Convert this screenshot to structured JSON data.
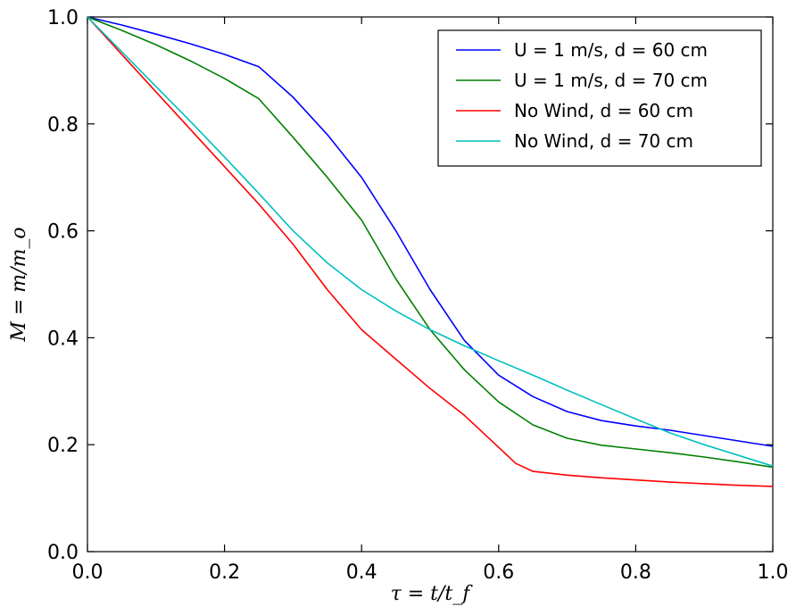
{
  "chart_data": {
    "type": "line",
    "xlabel": "τ = t/t_f",
    "ylabel": "M = m/m_o",
    "xlim": [
      0.0,
      1.0
    ],
    "ylim": [
      0.0,
      1.0
    ],
    "xticks": [
      "0.0",
      "0.2",
      "0.4",
      "0.6",
      "0.8",
      "1.0"
    ],
    "yticks": [
      "0.0",
      "0.2",
      "0.4",
      "0.6",
      "0.8",
      "1.0"
    ],
    "grid": false,
    "legend_position": "top-right",
    "series": [
      {
        "name": "U = 1 m/s, d = 60 cm",
        "color": "#0000ff",
        "x": [
          0.0,
          0.05,
          0.1,
          0.15,
          0.2,
          0.25,
          0.3,
          0.35,
          0.4,
          0.45,
          0.5,
          0.55,
          0.6,
          0.65,
          0.7,
          0.75,
          0.8,
          0.85,
          0.9,
          0.95,
          1.0
        ],
        "y": [
          1.0,
          0.985,
          0.968,
          0.95,
          0.93,
          0.907,
          0.85,
          0.78,
          0.7,
          0.6,
          0.49,
          0.395,
          0.33,
          0.29,
          0.262,
          0.245,
          0.235,
          0.227,
          0.217,
          0.207,
          0.197
        ]
      },
      {
        "name": "U = 1 m/s, d = 70 cm",
        "color": "#008000",
        "x": [
          0.0,
          0.05,
          0.1,
          0.15,
          0.2,
          0.25,
          0.3,
          0.35,
          0.4,
          0.45,
          0.5,
          0.55,
          0.6,
          0.65,
          0.7,
          0.75,
          0.8,
          0.85,
          0.9,
          0.95,
          1.0
        ],
        "y": [
          1.0,
          0.975,
          0.948,
          0.918,
          0.885,
          0.847,
          0.775,
          0.7,
          0.62,
          0.51,
          0.415,
          0.34,
          0.28,
          0.237,
          0.212,
          0.199,
          0.192,
          0.185,
          0.177,
          0.168,
          0.158
        ]
      },
      {
        "name": "No Wind, d = 60 cm",
        "color": "#ff0000",
        "x": [
          0.0,
          0.05,
          0.1,
          0.15,
          0.2,
          0.25,
          0.3,
          0.35,
          0.4,
          0.45,
          0.5,
          0.55,
          0.6,
          0.625,
          0.65,
          0.7,
          0.75,
          0.8,
          0.85,
          0.9,
          0.95,
          1.0
        ],
        "y": [
          1.0,
          0.93,
          0.86,
          0.79,
          0.72,
          0.65,
          0.575,
          0.49,
          0.415,
          0.36,
          0.305,
          0.255,
          0.195,
          0.165,
          0.15,
          0.143,
          0.138,
          0.134,
          0.13,
          0.127,
          0.124,
          0.122
        ]
      },
      {
        "name": "No Wind, d = 70 cm",
        "color": "#00bfbf",
        "x": [
          0.0,
          0.05,
          0.1,
          0.15,
          0.2,
          0.25,
          0.3,
          0.35,
          0.4,
          0.45,
          0.5,
          0.55,
          0.6,
          0.65,
          0.7,
          0.75,
          0.8,
          0.85,
          0.9,
          0.95,
          1.0
        ],
        "y": [
          1.0,
          0.935,
          0.87,
          0.805,
          0.738,
          0.67,
          0.6,
          0.54,
          0.49,
          0.45,
          0.415,
          0.385,
          0.357,
          0.33,
          0.302,
          0.275,
          0.248,
          0.222,
          0.2,
          0.18,
          0.16
        ]
      }
    ]
  }
}
